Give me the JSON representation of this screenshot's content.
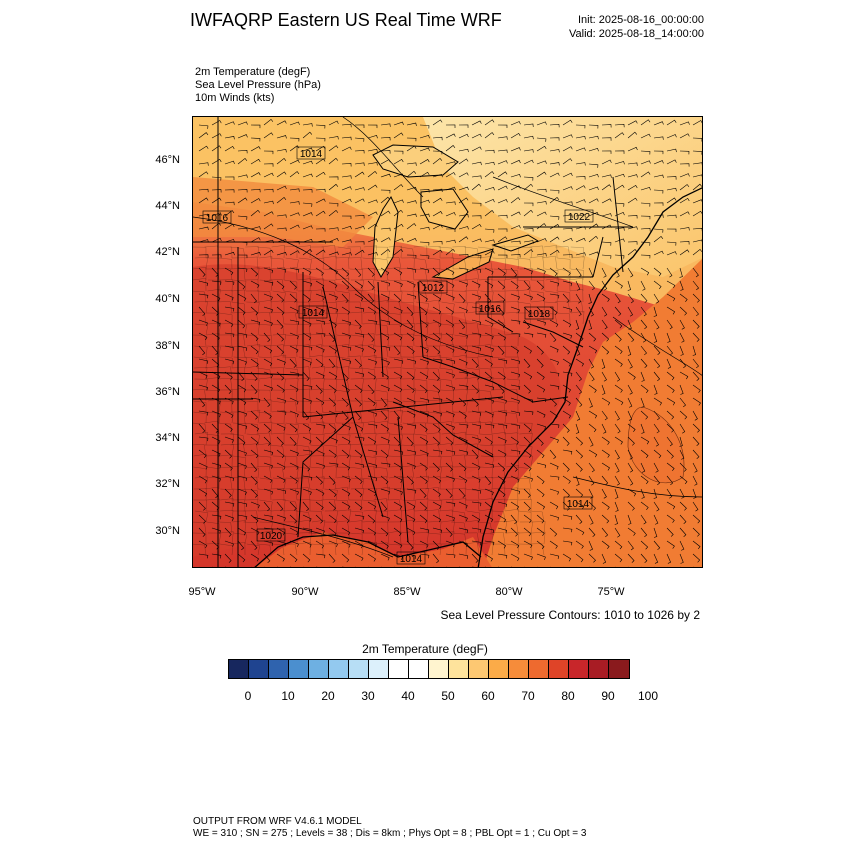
{
  "header": {
    "title": "IWFAQRP Eastern US Real Time WRF",
    "init": "Init: 2025-08-16_00:00:00",
    "valid": "Valid: 2025-08-18_14:00:00"
  },
  "fields": [
    "2m Temperature   (degF)",
    "Sea Level Pressure   (hPa)",
    "10m Winds   (kts)"
  ],
  "map": {
    "lat_labels": [
      "46°N",
      "44°N",
      "42°N",
      "40°N",
      "38°N",
      "36°N",
      "34°N",
      "32°N",
      "30°N"
    ],
    "lon_labels": [
      "95°W",
      "90°W",
      "85°W",
      "80°W",
      "75°W"
    ],
    "slp_labels": [
      "1014",
      "1016",
      "1022",
      "1012",
      "1014",
      "1016",
      "1018",
      "1014",
      "1020",
      "1014"
    ],
    "slp_contour_note": "Sea Level Pressure Contours: 1010 to 1026 by 2",
    "colors": {
      "hot": "#d1352a",
      "warm": "#f0703a",
      "mild": "#f9a54a",
      "cool": "#fde7a8",
      "ocean": "#f07a32"
    }
  },
  "colorbar": {
    "title": "2m Temperature  (degF)",
    "labels": [
      "0",
      "10",
      "20",
      "30",
      "40",
      "50",
      "60",
      "70",
      "80",
      "90",
      "100"
    ],
    "colors": [
      "#17275e",
      "#1f4490",
      "#2f63ae",
      "#4b8fcf",
      "#6eb0e2",
      "#93c9ef",
      "#b7def5",
      "#dcf0fb",
      "#ffffff",
      "#ffffff",
      "#fff4cf",
      "#fee39c",
      "#fdc872",
      "#fbab48",
      "#f68c3a",
      "#ee6a2f",
      "#df4428",
      "#c8262a",
      "#a81c24",
      "#8a1a1d"
    ]
  },
  "footer": {
    "line1": "OUTPUT FROM WRF V4.6.1 MODEL",
    "line2": "WE = 310 ; SN = 275 ; Levels = 38 ; Dis = 8km ; Phys Opt = 8 ; PBL Opt = 1 ; Cu Opt = 3"
  }
}
